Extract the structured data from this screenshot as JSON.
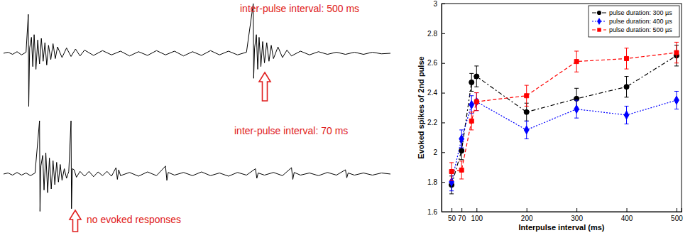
{
  "chart_data": [
    {
      "type": "line",
      "annotations": [
        "inter-pulse interval: 500 ms"
      ],
      "color": "#000000",
      "tick_labels": false,
      "xlim": [
        0,
        860
      ],
      "ylim": [
        -1,
        1
      ],
      "x": [
        0,
        10,
        20,
        30,
        40,
        50,
        55,
        56,
        58,
        62,
        65,
        68,
        72,
        76,
        80,
        84,
        88,
        92,
        96,
        100,
        105,
        110,
        115,
        120,
        130,
        140,
        150,
        160,
        170,
        180,
        200,
        220,
        240,
        260,
        280,
        300,
        320,
        340,
        360,
        380,
        400,
        420,
        440,
        460,
        480,
        500,
        520,
        540,
        555,
        556,
        558,
        562,
        565,
        568,
        572,
        576,
        580,
        585,
        590,
        595,
        600,
        610,
        620,
        630,
        640,
        660,
        680,
        700,
        720,
        740,
        760,
        780,
        800,
        820,
        840,
        860
      ],
      "values": [
        0,
        0.02,
        -0.02,
        0.03,
        -0.03,
        0.02,
        0.73,
        -1.0,
        0.1,
        0.3,
        -0.25,
        0.35,
        -0.3,
        0.25,
        -0.2,
        0.28,
        -0.15,
        0.2,
        -0.22,
        0.15,
        -0.12,
        0.18,
        -0.1,
        0.12,
        -0.08,
        0.1,
        -0.06,
        0.08,
        -0.05,
        0.06,
        -0.04,
        0.05,
        -0.03,
        0.04,
        -0.05,
        0.03,
        -0.04,
        0.05,
        -0.03,
        0.04,
        -0.05,
        0.03,
        -0.04,
        0.05,
        -0.03,
        0.04,
        -0.03,
        0.02,
        0.93,
        -0.47,
        0.1,
        0.35,
        -0.3,
        0.3,
        -0.25,
        0.22,
        -0.18,
        0.2,
        -0.15,
        0.15,
        -0.1,
        0.12,
        -0.08,
        0.06,
        -0.05,
        0.04,
        -0.03,
        0.03,
        -0.02,
        0.02,
        -0.02,
        0.02,
        -0.02,
        0.02,
        -0.01,
        0
      ]
    },
    {
      "type": "line",
      "annotations": [
        "inter-pulse interval: 70 ms",
        "no evoked responses"
      ],
      "color": "#000000",
      "tick_labels": false,
      "xlim": [
        0,
        860
      ],
      "ylim": [
        -1,
        1
      ],
      "x": [
        0,
        10,
        20,
        30,
        40,
        50,
        60,
        70,
        80,
        81,
        83,
        87,
        90,
        94,
        98,
        102,
        106,
        110,
        114,
        118,
        122,
        126,
        130,
        135,
        140,
        145,
        150,
        151,
        153,
        157,
        162,
        170,
        180,
        190,
        200,
        210,
        220,
        230,
        240,
        250,
        253,
        256,
        260,
        280,
        300,
        320,
        340,
        360,
        363,
        366,
        380,
        400,
        420,
        440,
        460,
        480,
        500,
        520,
        540,
        560,
        563,
        566,
        580,
        600,
        620,
        640,
        643,
        646,
        660,
        680,
        700,
        720,
        740,
        760,
        763,
        766,
        780,
        800,
        820,
        840,
        860
      ],
      "values": [
        0,
        0.02,
        -0.02,
        0.03,
        -0.02,
        0.02,
        -0.03,
        0.02,
        1.0,
        -0.7,
        0.15,
        0.35,
        -0.3,
        0.4,
        -0.35,
        0.3,
        -0.28,
        0.25,
        -0.2,
        0.22,
        -0.15,
        0.18,
        -0.12,
        0.1,
        -0.08,
        0.05,
        1.0,
        -0.65,
        0.1,
        0.08,
        -0.06,
        0.05,
        -0.04,
        0.05,
        -0.05,
        0.04,
        -0.03,
        0.05,
        -0.04,
        0.12,
        -0.1,
        0.08,
        -0.03,
        0.03,
        -0.04,
        0.04,
        -0.03,
        0.15,
        -0.12,
        0.03,
        -0.02,
        0.03,
        -0.03,
        0.04,
        -0.03,
        0.02,
        -0.04,
        0.03,
        -0.02,
        0.1,
        -0.08,
        0.02,
        -0.02,
        0.03,
        -0.03,
        0.12,
        -0.1,
        0.03,
        -0.02,
        0.02,
        -0.03,
        0.03,
        -0.02,
        0.08,
        -0.07,
        0.02,
        -0.02,
        0.02,
        -0.02,
        0.02,
        0
      ]
    },
    {
      "type": "line",
      "xlabel": "Interpulse interval (ms)",
      "ylabel": "Evoked spikes of 2nd pulse",
      "xlim": [
        30,
        510
      ],
      "ylim": [
        1.6,
        3
      ],
      "xticks": [
        50,
        70,
        100,
        200,
        300,
        400,
        500
      ],
      "yticks": [
        1.6,
        1.8,
        2,
        2.2,
        2.4,
        2.6,
        2.8,
        3
      ],
      "legend": "upper right",
      "x": [
        50,
        70,
        90,
        100,
        200,
        300,
        400,
        500
      ],
      "series": [
        {
          "name": "pulse duration: 300 µs",
          "color": "#000000",
          "marker": "circle",
          "line_style": "dashdot",
          "values": [
            1.78,
            2.01,
            2.47,
            2.51,
            2.27,
            2.36,
            2.44,
            2.65
          ],
          "errors": [
            0.06,
            0.06,
            0.06,
            0.07,
            0.06,
            0.07,
            0.07,
            0.07
          ]
        },
        {
          "name": "pulse duration: 400 µs",
          "color": "#0000ff",
          "marker": "diamond",
          "line_style": "dotted",
          "values": [
            1.8,
            2.09,
            2.32,
            2.34,
            2.15,
            2.29,
            2.25,
            2.35
          ],
          "errors": [
            0.06,
            0.06,
            0.06,
            0.06,
            0.06,
            0.06,
            0.06,
            0.06
          ]
        },
        {
          "name": "pulse duration: 500 µs",
          "color": "#ff0000",
          "marker": "square",
          "line_style": "dashed",
          "values": [
            1.87,
            1.88,
            2.21,
            2.34,
            2.38,
            2.61,
            2.63,
            2.67
          ],
          "errors": [
            0.06,
            0.06,
            0.06,
            0.06,
            0.07,
            0.07,
            0.07,
            0.07
          ]
        }
      ]
    }
  ]
}
